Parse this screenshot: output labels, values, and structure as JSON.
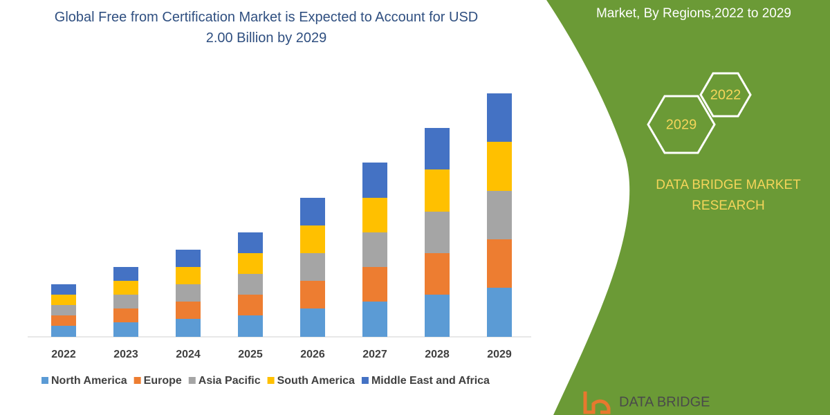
{
  "chart_data": {
    "type": "stacked_bar",
    "title": "Global Free from Certification Market is Expected to Account for USD 2.00 Billion by 2029",
    "categories": [
      "2022",
      "2023",
      "2024",
      "2025",
      "2026",
      "2027",
      "2028",
      "2029"
    ],
    "series": [
      {
        "name": "North America",
        "color": "#5b9bd5",
        "values": [
          16,
          21,
          26,
          31,
          41,
          51,
          61,
          71
        ]
      },
      {
        "name": "Europe",
        "color": "#ed7d31",
        "values": [
          15,
          20,
          25,
          30,
          40,
          50,
          60,
          70
        ]
      },
      {
        "name": "Asia Pacific",
        "color": "#a5a5a5",
        "values": [
          15,
          20,
          25,
          30,
          40,
          50,
          60,
          70
        ]
      },
      {
        "name": "South America",
        "color": "#ffc000",
        "values": [
          15,
          20,
          25,
          30,
          40,
          50,
          61,
          71
        ]
      },
      {
        "name": "Middle East and Africa",
        "color": "#4472c4",
        "values": [
          15,
          20,
          25,
          30,
          40,
          51,
          60,
          70
        ]
      }
    ]
  },
  "side_panel": {
    "heading": "Market, By Regions,2022 to 2029",
    "hexagons": [
      "2022",
      "2029"
    ],
    "brand": "DATA BRIDGE MARKET RESEARCH",
    "logo": "DATA BRIDGE"
  }
}
